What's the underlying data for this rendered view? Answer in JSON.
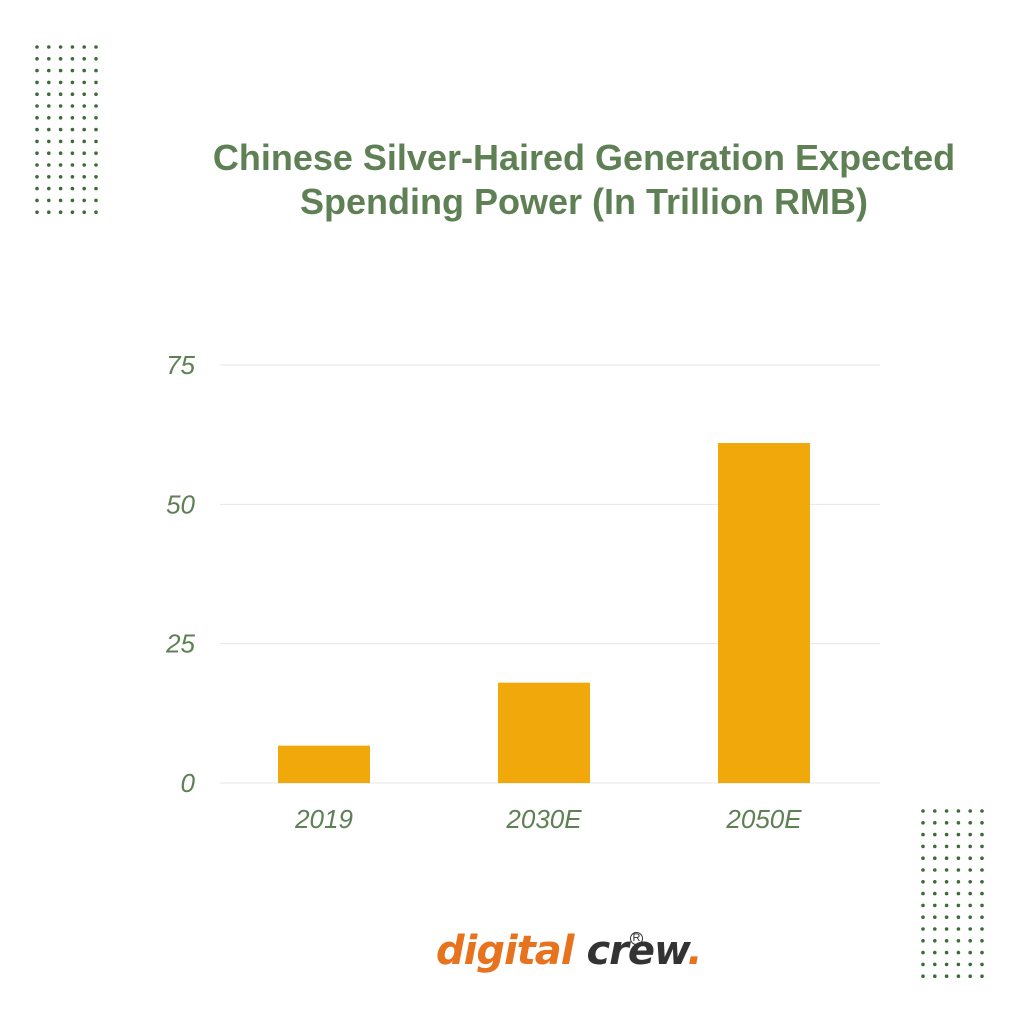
{
  "title": {
    "line1": "Chinese Silver-Haired Generation Expected",
    "line2": "Spending Power (In Trillion RMB)"
  },
  "chart_data": {
    "type": "bar",
    "title": "Chinese Silver-Haired Generation Expected Spending Power (In Trillion RMB)",
    "categories": [
      "2019",
      "2030E",
      "2050E"
    ],
    "values": [
      6.7,
      18,
      61
    ],
    "ylim": [
      0,
      75
    ],
    "yticks": [
      0,
      25,
      50,
      75
    ],
    "xlabel": "",
    "ylabel": "",
    "grid": true,
    "bar_color": "#f0a80a",
    "axis_label_color": "#5e8054",
    "grid_color": "#e6e6e6"
  },
  "logo": {
    "word1": "digital",
    "word2": "crew",
    "dot": ".",
    "registered": "R"
  },
  "colors": {
    "title": "#5e8054",
    "dots": "#3d6b37",
    "logo_orange": "#e8731f",
    "logo_dark": "#333333"
  }
}
